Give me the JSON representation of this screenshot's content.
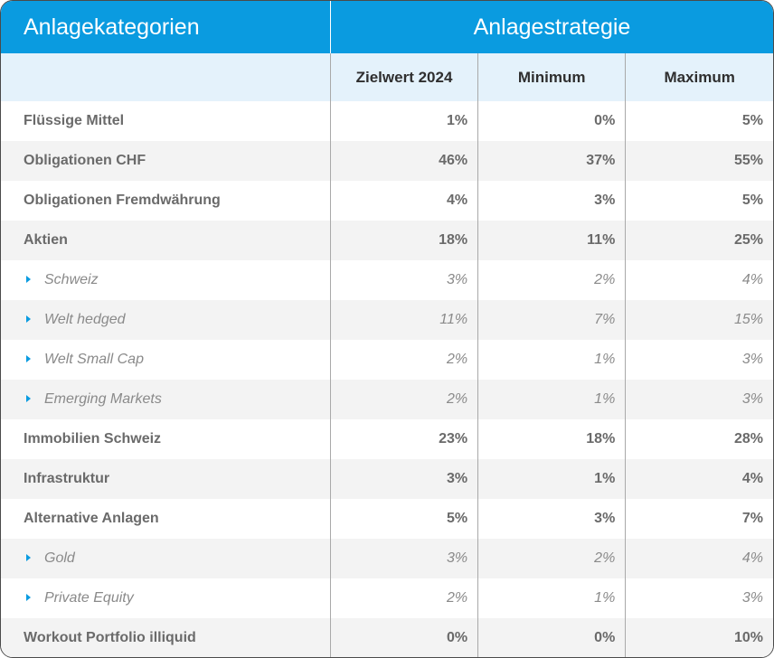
{
  "header": {
    "categories_title": "Anlagekategorien",
    "strategy_title": "Anlagestrategie",
    "columns": [
      "Zielwert 2024",
      "Minimum",
      "Maximum"
    ]
  },
  "colors": {
    "header_blue": "#0a9be0",
    "subheader_bg": "#e4f2fb",
    "alt_row_bg": "#f3f3f3"
  },
  "rows": [
    {
      "label": "Flüssige Mittel",
      "target": "1%",
      "min": "0%",
      "max": "5%",
      "sub": false
    },
    {
      "label": "Obligationen CHF",
      "target": "46%",
      "min": "37%",
      "max": "55%",
      "sub": false
    },
    {
      "label": "Obligationen Fremdwährung",
      "target": "4%",
      "min": "3%",
      "max": "5%",
      "sub": false
    },
    {
      "label": "Aktien",
      "target": "18%",
      "min": "11%",
      "max": "25%",
      "sub": false
    },
    {
      "label": "Schweiz",
      "target": "3%",
      "min": "2%",
      "max": "4%",
      "sub": true
    },
    {
      "label": "Welt hedged",
      "target": "11%",
      "min": "7%",
      "max": "15%",
      "sub": true
    },
    {
      "label": "Welt Small Cap",
      "target": "2%",
      "min": "1%",
      "max": "3%",
      "sub": true
    },
    {
      "label": "Emerging Markets",
      "target": "2%",
      "min": "1%",
      "max": "3%",
      "sub": true
    },
    {
      "label": "Immobilien Schweiz",
      "target": "23%",
      "min": "18%",
      "max": "28%",
      "sub": false
    },
    {
      "label": "Infrastruktur",
      "target": "3%",
      "min": "1%",
      "max": "4%",
      "sub": false
    },
    {
      "label": "Alternative Anlagen",
      "target": "5%",
      "min": "3%",
      "max": "7%",
      "sub": false
    },
    {
      "label": "Gold",
      "target": "3%",
      "min": "2%",
      "max": "4%",
      "sub": true
    },
    {
      "label": "Private Equity",
      "target": "2%",
      "min": "1%",
      "max": "3%",
      "sub": true
    },
    {
      "label": "Workout Portfolio illiquid",
      "target": "0%",
      "min": "0%",
      "max": "10%",
      "sub": false
    }
  ]
}
